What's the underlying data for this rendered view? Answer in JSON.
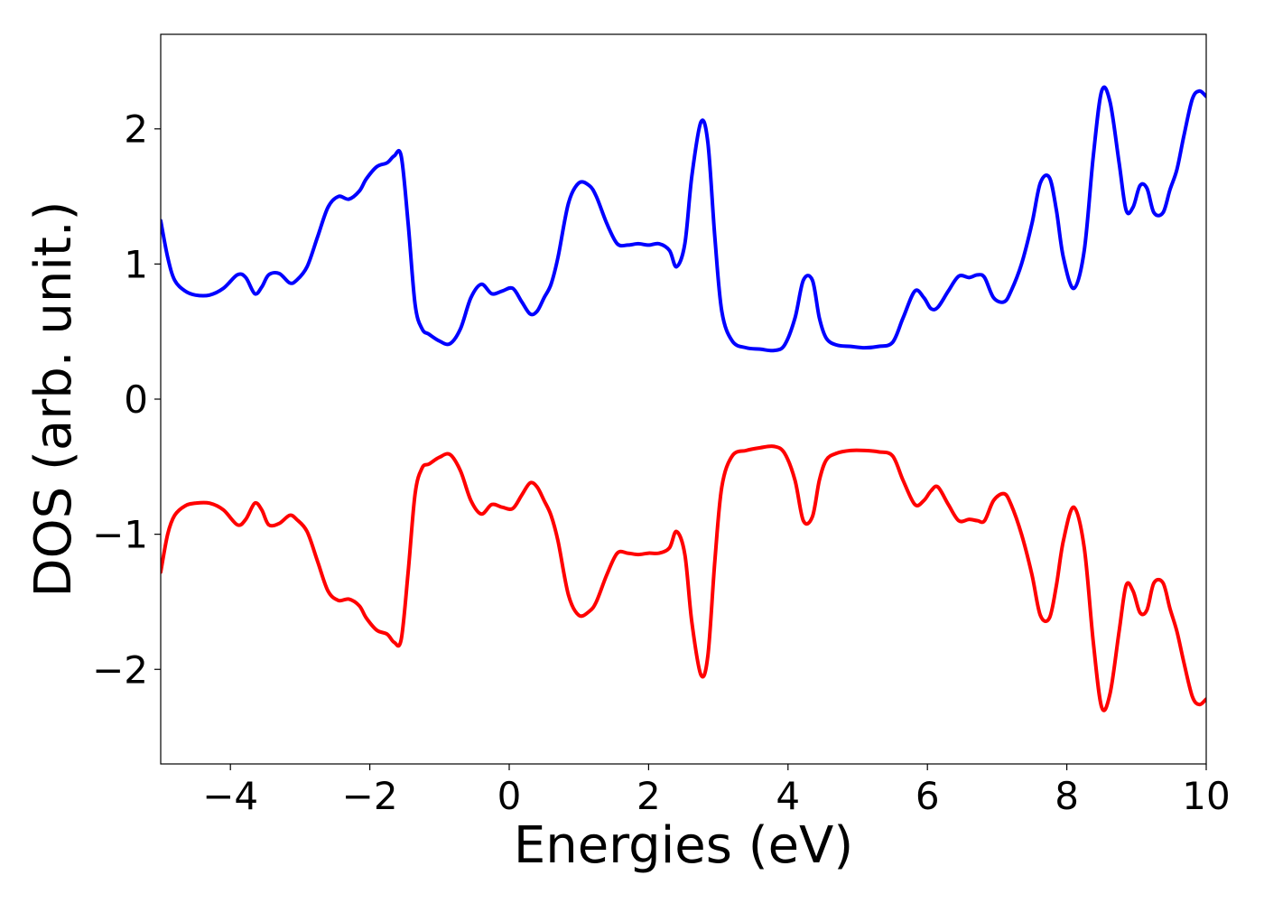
{
  "chart_data": {
    "type": "line",
    "title": "",
    "xlabel": "Energies (eV)",
    "ylabel": "DOS (arb. unit.)",
    "xlim": [
      -5,
      10
    ],
    "ylim": [
      -2.7,
      2.7
    ],
    "grid": false,
    "legend": "none",
    "x_ticks": [
      -4,
      -2,
      0,
      2,
      4,
      6,
      8,
      10
    ],
    "x_tick_labels": [
      "−4",
      "−2",
      "0",
      "2",
      "4",
      "6",
      "8",
      "10"
    ],
    "y_ticks": [
      2,
      1,
      0,
      -1,
      -2
    ],
    "y_tick_labels": [
      "2",
      "1",
      "0",
      "−1",
      "−2"
    ],
    "series": [
      {
        "color": "#0000ff",
        "x": [
          -5.0,
          -4.9,
          -4.8,
          -4.65,
          -4.5,
          -4.3,
          -4.1,
          -3.9,
          -3.78,
          -3.65,
          -3.55,
          -3.45,
          -3.3,
          -3.15,
          -3.05,
          -2.9,
          -2.75,
          -2.6,
          -2.45,
          -2.3,
          -2.15,
          -2.05,
          -1.9,
          -1.75,
          -1.65,
          -1.55,
          -1.45,
          -1.35,
          -1.25,
          -1.15,
          -1.0,
          -0.85,
          -0.7,
          -0.55,
          -0.4,
          -0.25,
          -0.1,
          0.05,
          0.18,
          0.3,
          0.4,
          0.5,
          0.6,
          0.7,
          0.85,
          1.0,
          1.15,
          1.25,
          1.4,
          1.55,
          1.7,
          1.85,
          2.0,
          2.15,
          2.3,
          2.4,
          2.52,
          2.62,
          2.75,
          2.85,
          2.95,
          3.05,
          3.2,
          3.4,
          3.6,
          3.8,
          3.95,
          4.1,
          4.22,
          4.35,
          4.45,
          4.55,
          4.7,
          4.9,
          5.1,
          5.3,
          5.5,
          5.65,
          5.82,
          5.95,
          6.05,
          6.15,
          6.3,
          6.45,
          6.6,
          6.72,
          6.82,
          6.95,
          7.1,
          7.2,
          7.35,
          7.5,
          7.62,
          7.75,
          7.85,
          7.95,
          8.1,
          8.25,
          8.38,
          8.5,
          8.62,
          8.75,
          8.85,
          8.95,
          9.05,
          9.15,
          9.25,
          9.38,
          9.48,
          9.58,
          9.68,
          9.8,
          9.9,
          10.0
        ],
        "values": [
          1.32,
          1.05,
          0.88,
          0.8,
          0.77,
          0.77,
          0.82,
          0.92,
          0.9,
          0.78,
          0.83,
          0.92,
          0.93,
          0.86,
          0.88,
          0.98,
          1.2,
          1.42,
          1.5,
          1.48,
          1.54,
          1.63,
          1.72,
          1.75,
          1.8,
          1.8,
          1.3,
          0.7,
          0.52,
          0.48,
          0.43,
          0.41,
          0.52,
          0.75,
          0.85,
          0.78,
          0.8,
          0.82,
          0.72,
          0.63,
          0.65,
          0.75,
          0.85,
          1.05,
          1.45,
          1.6,
          1.58,
          1.5,
          1.3,
          1.15,
          1.14,
          1.15,
          1.14,
          1.15,
          1.1,
          0.98,
          1.15,
          1.65,
          2.05,
          1.9,
          1.2,
          0.65,
          0.43,
          0.38,
          0.37,
          0.36,
          0.4,
          0.6,
          0.88,
          0.88,
          0.6,
          0.45,
          0.4,
          0.39,
          0.38,
          0.39,
          0.42,
          0.6,
          0.8,
          0.75,
          0.67,
          0.68,
          0.8,
          0.91,
          0.9,
          0.92,
          0.9,
          0.75,
          0.72,
          0.8,
          1.0,
          1.3,
          1.6,
          1.64,
          1.4,
          1.05,
          0.82,
          1.1,
          1.8,
          2.28,
          2.2,
          1.75,
          1.4,
          1.42,
          1.58,
          1.56,
          1.38,
          1.38,
          1.55,
          1.7,
          1.95,
          2.22,
          2.28,
          2.24
        ]
      },
      {
        "color": "#ff0000",
        "x": [
          -5.0,
          -4.9,
          -4.8,
          -4.65,
          -4.5,
          -4.3,
          -4.1,
          -3.9,
          -3.78,
          -3.65,
          -3.55,
          -3.45,
          -3.3,
          -3.15,
          -3.05,
          -2.9,
          -2.75,
          -2.6,
          -2.45,
          -2.3,
          -2.15,
          -2.05,
          -1.9,
          -1.75,
          -1.65,
          -1.55,
          -1.45,
          -1.35,
          -1.25,
          -1.15,
          -1.0,
          -0.85,
          -0.7,
          -0.55,
          -0.4,
          -0.25,
          -0.1,
          0.05,
          0.18,
          0.3,
          0.4,
          0.5,
          0.6,
          0.7,
          0.85,
          1.0,
          1.15,
          1.25,
          1.4,
          1.55,
          1.7,
          1.85,
          2.0,
          2.15,
          2.3,
          2.4,
          2.52,
          2.62,
          2.75,
          2.85,
          2.95,
          3.05,
          3.2,
          3.4,
          3.6,
          3.8,
          3.95,
          4.1,
          4.22,
          4.35,
          4.45,
          4.55,
          4.7,
          4.9,
          5.1,
          5.3,
          5.5,
          5.65,
          5.82,
          5.95,
          6.05,
          6.15,
          6.3,
          6.45,
          6.6,
          6.72,
          6.82,
          6.95,
          7.1,
          7.2,
          7.35,
          7.5,
          7.62,
          7.75,
          7.85,
          7.95,
          8.1,
          8.25,
          8.38,
          8.5,
          8.62,
          8.75,
          8.85,
          8.95,
          9.05,
          9.15,
          9.25,
          9.38,
          9.48,
          9.58,
          9.68,
          9.8,
          9.9,
          10.0
        ],
        "values": [
          -1.28,
          -1.0,
          -0.86,
          -0.79,
          -0.77,
          -0.77,
          -0.82,
          -0.93,
          -0.89,
          -0.77,
          -0.82,
          -0.93,
          -0.92,
          -0.86,
          -0.89,
          -0.98,
          -1.2,
          -1.42,
          -1.49,
          -1.48,
          -1.53,
          -1.62,
          -1.71,
          -1.74,
          -1.8,
          -1.78,
          -1.28,
          -0.7,
          -0.51,
          -0.48,
          -0.43,
          -0.41,
          -0.53,
          -0.75,
          -0.85,
          -0.78,
          -0.8,
          -0.81,
          -0.71,
          -0.62,
          -0.65,
          -0.75,
          -0.86,
          -1.05,
          -1.45,
          -1.6,
          -1.57,
          -1.5,
          -1.3,
          -1.14,
          -1.14,
          -1.15,
          -1.14,
          -1.14,
          -1.1,
          -0.98,
          -1.15,
          -1.65,
          -2.04,
          -1.9,
          -1.2,
          -0.65,
          -0.42,
          -0.38,
          -0.36,
          -0.35,
          -0.4,
          -0.6,
          -0.9,
          -0.87,
          -0.6,
          -0.45,
          -0.4,
          -0.38,
          -0.38,
          -0.39,
          -0.42,
          -0.6,
          -0.78,
          -0.75,
          -0.68,
          -0.65,
          -0.78,
          -0.9,
          -0.89,
          -0.9,
          -0.9,
          -0.75,
          -0.7,
          -0.78,
          -1.0,
          -1.3,
          -1.6,
          -1.62,
          -1.38,
          -1.05,
          -0.8,
          -1.1,
          -1.8,
          -2.28,
          -2.18,
          -1.72,
          -1.38,
          -1.42,
          -1.58,
          -1.56,
          -1.36,
          -1.36,
          -1.55,
          -1.72,
          -1.95,
          -2.2,
          -2.26,
          -2.22
        ]
      }
    ]
  }
}
